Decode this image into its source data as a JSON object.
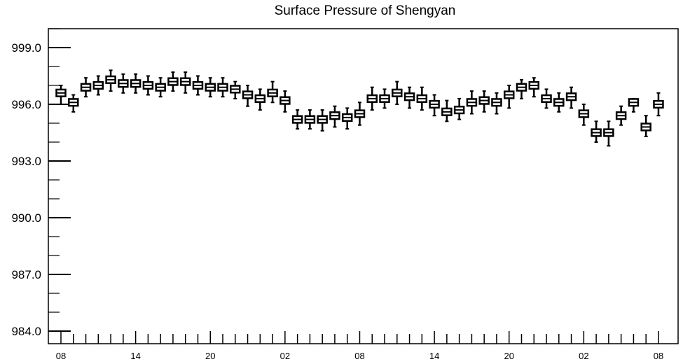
{
  "chart_data": {
    "type": "box",
    "title": "Surface Pressure of Shengyan",
    "xlabel": "",
    "ylabel": "",
    "ylim": [
      983.8,
      1000.0
    ],
    "y_ticks": [
      {
        "value": 999.0,
        "label": "999.0"
      },
      {
        "value": 996.0,
        "label": "996.0"
      },
      {
        "value": 993.0,
        "label": "993.0"
      },
      {
        "value": 990.0,
        "label": "990.0"
      },
      {
        "value": 987.0,
        "label": "987.0"
      },
      {
        "value": 984.0,
        "label": "984.0"
      }
    ],
    "y_minor_step": 1.0,
    "x_ticks": [
      {
        "index": 0,
        "label": "08"
      },
      {
        "index": 6,
        "label": "14"
      },
      {
        "index": 12,
        "label": "20"
      },
      {
        "index": 18,
        "label": "02"
      },
      {
        "index": 24,
        "label": "08"
      },
      {
        "index": 30,
        "label": "14"
      },
      {
        "index": 36,
        "label": "20"
      },
      {
        "index": 42,
        "label": "02"
      },
      {
        "index": 48,
        "label": "08"
      }
    ],
    "x_count": 49,
    "median": [
      996.6,
      996.1,
      996.9,
      997.0,
      997.3,
      997.1,
      997.1,
      997.0,
      996.9,
      997.2,
      997.2,
      997.0,
      996.9,
      996.9,
      996.8,
      996.5,
      996.3,
      996.6,
      996.2,
      995.2,
      995.2,
      995.2,
      995.4,
      995.3,
      995.5,
      996.3,
      996.3,
      996.6,
      996.4,
      996.3,
      996.0,
      995.6,
      995.7,
      996.1,
      996.2,
      996.1,
      996.5,
      996.9,
      997.0,
      996.3,
      996.1,
      996.4,
      995.5,
      994.5,
      994.5,
      995.4,
      996.1,
      994.8,
      996.0
    ],
    "whisker_low": [
      996.0,
      995.6,
      996.4,
      996.5,
      996.7,
      996.6,
      996.6,
      996.5,
      996.4,
      996.7,
      996.6,
      996.5,
      996.4,
      996.4,
      996.3,
      995.9,
      995.7,
      996.1,
      995.6,
      994.7,
      994.7,
      994.6,
      994.8,
      994.7,
      994.9,
      995.7,
      995.8,
      996.0,
      995.8,
      995.7,
      995.4,
      995.1,
      995.2,
      995.5,
      995.6,
      995.5,
      995.8,
      996.3,
      996.4,
      995.8,
      995.6,
      995.8,
      994.9,
      994.0,
      993.8,
      994.9,
      995.6,
      994.3,
      995.4
    ],
    "whisker_high": [
      997.0,
      996.5,
      997.4,
      997.5,
      997.8,
      997.6,
      997.6,
      997.5,
      997.4,
      997.7,
      997.7,
      997.5,
      997.4,
      997.4,
      997.2,
      997.0,
      996.8,
      997.2,
      996.7,
      995.7,
      995.7,
      995.7,
      995.9,
      995.8,
      996.1,
      996.9,
      996.8,
      997.2,
      996.9,
      996.9,
      996.5,
      996.2,
      996.3,
      996.7,
      996.7,
      996.6,
      997.0,
      997.3,
      997.4,
      996.8,
      996.6,
      996.9,
      996.0,
      995.1,
      995.1,
      995.9,
      996.3,
      995.4,
      996.6
    ]
  }
}
